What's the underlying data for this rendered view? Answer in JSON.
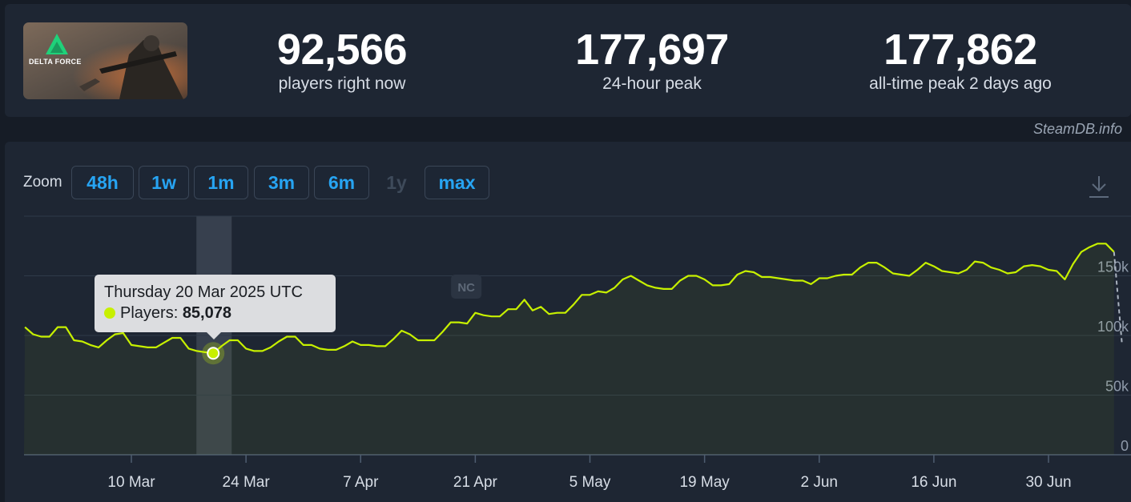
{
  "game": {
    "logo_text": "DELTA FORCE"
  },
  "stats": [
    {
      "value": "92,566",
      "label": "players right now"
    },
    {
      "value": "177,697",
      "label": "24-hour peak"
    },
    {
      "value": "177,862",
      "label": "all-time peak 2 days ago"
    }
  ],
  "credit": "SteamDB.info",
  "zoom": {
    "label": "Zoom",
    "buttons": [
      {
        "label": "48h",
        "enabled": true
      },
      {
        "label": "1w",
        "enabled": true
      },
      {
        "label": "1m",
        "enabled": true
      },
      {
        "label": "3m",
        "enabled": true
      },
      {
        "label": "6m",
        "enabled": true
      },
      {
        "label": "1y",
        "enabled": false
      },
      {
        "label": "max",
        "enabled": true
      }
    ]
  },
  "icons": {
    "download": "download-icon"
  },
  "annotation": "NC",
  "tooltip": {
    "date": "Thursday 20 Mar 2025 UTC",
    "series_label": "Players:",
    "value": "85,078"
  },
  "colors": {
    "line": "#c7f000",
    "accent": "#27a4f2",
    "background": "#1e2633"
  },
  "chart_data": {
    "type": "line",
    "title": "",
    "xlabel": "",
    "ylabel": "",
    "x_ticks": [
      "10 Mar",
      "24 Mar",
      "7 Apr",
      "21 Apr",
      "5 May",
      "19 May",
      "2 Jun",
      "16 Jun",
      "30 Jun"
    ],
    "y_ticks": [
      "0",
      "50k",
      "100k",
      "150k"
    ],
    "ylim": [
      0,
      200000
    ],
    "grid": true,
    "highlight_date": "2025-03-20",
    "series": [
      {
        "name": "Players",
        "dates": [
          "2025-02-25",
          "2025-02-26",
          "2025-02-27",
          "2025-02-28",
          "2025-03-01",
          "2025-03-02",
          "2025-03-03",
          "2025-03-04",
          "2025-03-05",
          "2025-03-06",
          "2025-03-07",
          "2025-03-08",
          "2025-03-09",
          "2025-03-10",
          "2025-03-11",
          "2025-03-12",
          "2025-03-13",
          "2025-03-14",
          "2025-03-15",
          "2025-03-16",
          "2025-03-17",
          "2025-03-18",
          "2025-03-19",
          "2025-03-20",
          "2025-03-21",
          "2025-03-22",
          "2025-03-23",
          "2025-03-24",
          "2025-03-25",
          "2025-03-26",
          "2025-03-27",
          "2025-03-28",
          "2025-03-29",
          "2025-03-30",
          "2025-03-31",
          "2025-04-01",
          "2025-04-02",
          "2025-04-03",
          "2025-04-04",
          "2025-04-05",
          "2025-04-06",
          "2025-04-07",
          "2025-04-08",
          "2025-04-09",
          "2025-04-10",
          "2025-04-11",
          "2025-04-12",
          "2025-04-13",
          "2025-04-14",
          "2025-04-15",
          "2025-04-16",
          "2025-04-17",
          "2025-04-18",
          "2025-04-19",
          "2025-04-20",
          "2025-04-21",
          "2025-04-22",
          "2025-04-23",
          "2025-04-24",
          "2025-04-25",
          "2025-04-26",
          "2025-04-27",
          "2025-04-28",
          "2025-04-29",
          "2025-04-30",
          "2025-05-01",
          "2025-05-02",
          "2025-05-03",
          "2025-05-04",
          "2025-05-05",
          "2025-05-06",
          "2025-05-07",
          "2025-05-08",
          "2025-05-09",
          "2025-05-10",
          "2025-05-11",
          "2025-05-12",
          "2025-05-13",
          "2025-05-14",
          "2025-05-15",
          "2025-05-16",
          "2025-05-17",
          "2025-05-18",
          "2025-05-19",
          "2025-05-20",
          "2025-05-21",
          "2025-05-22",
          "2025-05-23",
          "2025-05-24",
          "2025-05-25",
          "2025-05-26",
          "2025-05-27",
          "2025-05-28",
          "2025-05-29",
          "2025-05-30",
          "2025-05-31",
          "2025-06-01",
          "2025-06-02",
          "2025-06-03",
          "2025-06-04",
          "2025-06-05",
          "2025-06-06",
          "2025-06-07",
          "2025-06-08",
          "2025-06-09",
          "2025-06-10",
          "2025-06-11",
          "2025-06-12",
          "2025-06-13",
          "2025-06-14",
          "2025-06-15",
          "2025-06-16",
          "2025-06-17",
          "2025-06-18",
          "2025-06-19",
          "2025-06-20",
          "2025-06-21",
          "2025-06-22",
          "2025-06-23",
          "2025-06-24",
          "2025-06-25",
          "2025-06-26",
          "2025-06-27",
          "2025-06-28",
          "2025-06-29",
          "2025-06-30",
          "2025-07-01",
          "2025-07-02",
          "2025-07-03",
          "2025-07-04",
          "2025-07-05",
          "2025-07-06",
          "2025-07-07",
          "2025-07-08"
        ],
        "values": [
          107000,
          101000,
          99000,
          99000,
          107000,
          107000,
          96000,
          95000,
          92000,
          90000,
          96000,
          101000,
          102000,
          92000,
          91000,
          90000,
          90000,
          94000,
          98000,
          98000,
          89000,
          87000,
          86000,
          85078,
          91000,
          96000,
          96000,
          89000,
          87000,
          87000,
          90000,
          95000,
          99000,
          99000,
          92000,
          92000,
          89000,
          88000,
          88000,
          91000,
          95000,
          92000,
          92000,
          91000,
          91000,
          97000,
          104000,
          101000,
          96000,
          96000,
          96000,
          103000,
          111000,
          111000,
          110000,
          119000,
          117000,
          116000,
          116000,
          122000,
          122000,
          130000,
          121000,
          124000,
          118000,
          119000,
          119000,
          126000,
          134000,
          134000,
          137000,
          136000,
          140000,
          147000,
          150000,
          146000,
          142000,
          140000,
          139000,
          139000,
          146000,
          150000,
          150000,
          147000,
          142000,
          142000,
          143000,
          151000,
          154000,
          153000,
          149000,
          149000,
          148000,
          147000,
          146000,
          146000,
          143000,
          148000,
          148000,
          150000,
          151000,
          151000,
          157000,
          161000,
          161000,
          157000,
          152000,
          151000,
          150000,
          155000,
          161000,
          158000,
          154000,
          153000,
          152000,
          155000,
          162000,
          161000,
          157000,
          155000,
          152000,
          153000,
          158000,
          159000,
          158000,
          155000,
          154000,
          147000,
          160000,
          170000,
          174000,
          177000,
          177000,
          170000
        ]
      }
    ]
  }
}
